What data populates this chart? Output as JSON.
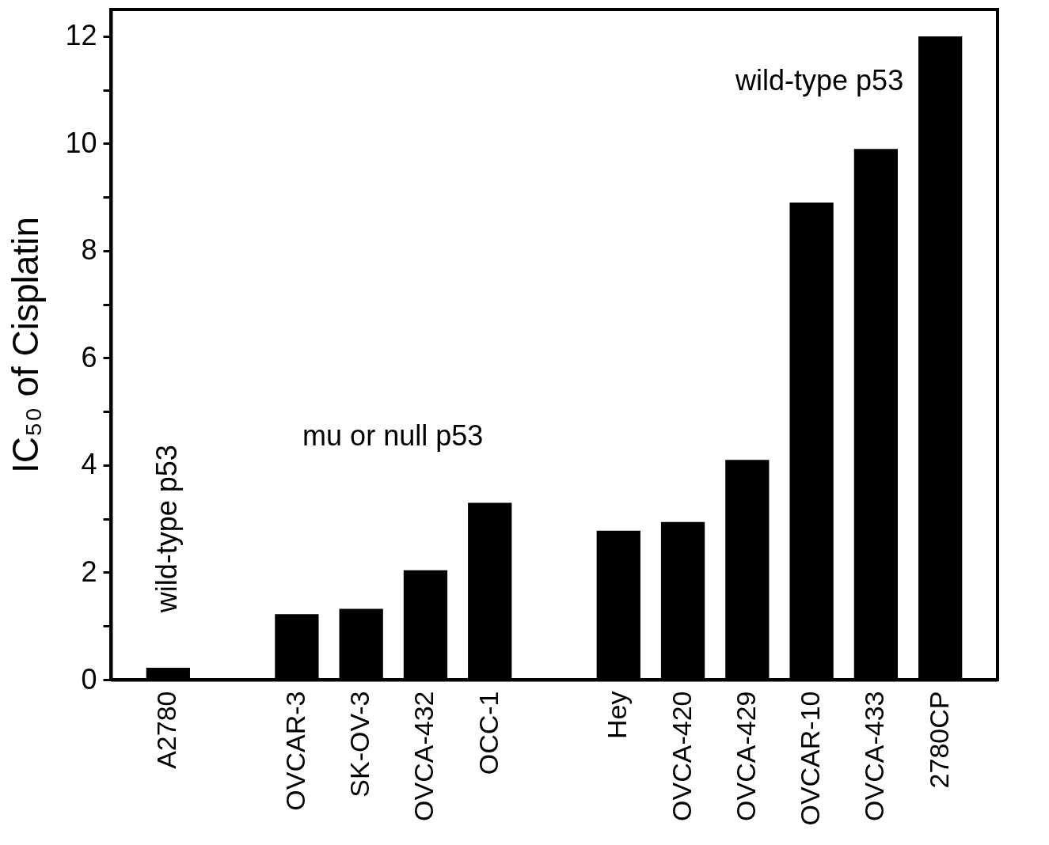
{
  "chart_data": {
    "type": "bar",
    "ylabel": "IC₅₀ of Cisplatin",
    "categories": [
      "A2780",
      null,
      "OVCAR-3",
      "SK-OV-3",
      "OVCA-432",
      "OCC-1",
      null,
      "Hey",
      "OVCA-420",
      "OVCA-429",
      "OVCAR-10",
      "OVCA-433",
      "2780CP"
    ],
    "values": [
      0.22,
      null,
      1.22,
      1.32,
      2.04,
      3.3,
      null,
      2.78,
      2.94,
      4.1,
      8.9,
      9.9,
      12.0
    ],
    "color": "#000000",
    "ylim": [
      0,
      12.5
    ],
    "yticks": [
      0,
      {
        "value": 1,
        "label": null
      },
      2,
      {
        "value": 3,
        "label": null
      },
      4,
      {
        "value": 5,
        "label": null
      },
      6,
      {
        "value": 7,
        "label": null
      },
      8,
      {
        "value": 9,
        "label": null
      },
      10,
      {
        "value": 11,
        "label": null
      },
      12
    ],
    "annotations": [
      "wild-type p53",
      "mu or null p53",
      "wild-type p53"
    ],
    "grid": false
  }
}
